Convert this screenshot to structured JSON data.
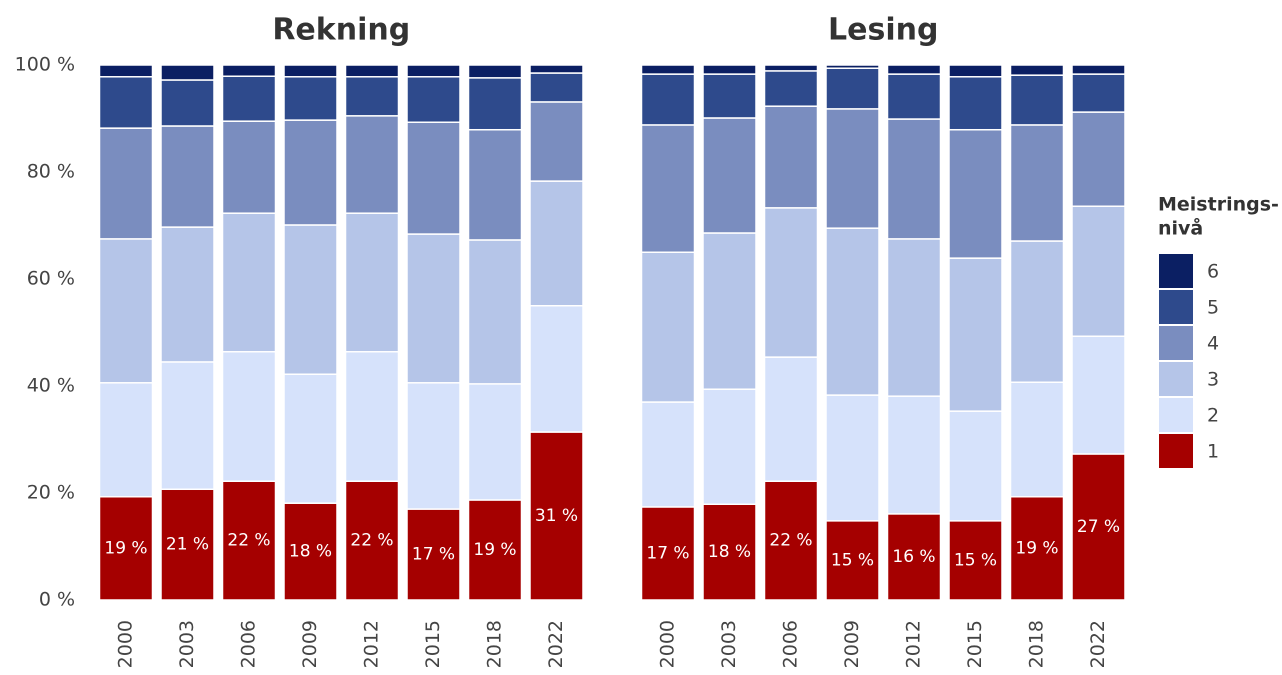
{
  "chart_data": [
    {
      "type": "bar",
      "stacked": true,
      "title": "Rekning",
      "categories": [
        "2000",
        "2003",
        "2006",
        "2009",
        "2012",
        "2015",
        "2018",
        "2022"
      ],
      "ylim": [
        0,
        100
      ],
      "yticks": [
        {
          "value": 0,
          "label": "0 %"
        },
        {
          "value": 20,
          "label": "20 %"
        },
        {
          "value": 40,
          "label": "40 %"
        },
        {
          "value": 60,
          "label": "60 %"
        },
        {
          "value": 80,
          "label": "80 %"
        },
        {
          "value": 100,
          "label": "100 %"
        }
      ],
      "legend_title": [
        "Meistrings-",
        "nivå"
      ],
      "series": [
        {
          "name": "1",
          "color": "#a50000",
          "values": [
            19.3,
            20.7,
            22.2,
            18.1,
            22.2,
            17.0,
            18.7,
            31.4
          ],
          "value_labels": [
            "19 %",
            "21 %",
            "22 %",
            "18 %",
            "22 %",
            "17 %",
            "19 %",
            "31 %"
          ]
        },
        {
          "name": "2",
          "color": "#d6e2fb",
          "values": [
            21.3,
            23.8,
            24.2,
            24.1,
            24.2,
            23.6,
            21.7,
            23.6
          ]
        },
        {
          "name": "3",
          "color": "#b5c5e8",
          "values": [
            26.9,
            25.2,
            25.9,
            27.9,
            25.9,
            27.8,
            26.9,
            23.3
          ]
        },
        {
          "name": "4",
          "color": "#7a8dbf",
          "values": [
            20.7,
            18.9,
            17.2,
            19.6,
            18.2,
            20.9,
            20.6,
            14.8
          ]
        },
        {
          "name": "5",
          "color": "#2e4a8c",
          "values": [
            9.6,
            8.6,
            8.4,
            8.1,
            7.3,
            8.5,
            9.7,
            5.4
          ]
        },
        {
          "name": "6",
          "color": "#0b1f63",
          "values": [
            2.2,
            2.8,
            2.1,
            2.2,
            2.2,
            2.2,
            2.4,
            1.5
          ]
        }
      ]
    },
    {
      "type": "bar",
      "stacked": true,
      "title": "Lesing",
      "categories": [
        "2000",
        "2003",
        "2006",
        "2009",
        "2012",
        "2015",
        "2018",
        "2022"
      ],
      "ylim": [
        0,
        100
      ],
      "series": [
        {
          "name": "1",
          "color": "#a50000",
          "values": [
            17.4,
            17.9,
            22.2,
            14.8,
            16.1,
            14.8,
            19.3,
            27.3
          ],
          "value_labels": [
            "17 %",
            "18 %",
            "22 %",
            "15 %",
            "16 %",
            "15 %",
            "19 %",
            "27 %"
          ]
        },
        {
          "name": "2",
          "color": "#d6e2fb",
          "values": [
            19.6,
            21.5,
            23.2,
            23.5,
            22.0,
            20.5,
            21.4,
            22.0
          ]
        },
        {
          "name": "3",
          "color": "#b5c5e8",
          "values": [
            28.0,
            29.2,
            27.9,
            31.2,
            29.4,
            28.6,
            26.4,
            24.3
          ]
        },
        {
          "name": "4",
          "color": "#7a8dbf",
          "values": [
            23.8,
            21.5,
            19.0,
            22.3,
            22.4,
            24.0,
            21.7,
            17.6
          ]
        },
        {
          "name": "5",
          "color": "#2e4a8c",
          "values": [
            9.5,
            8.2,
            6.6,
            7.6,
            8.4,
            9.9,
            9.3,
            7.1
          ]
        },
        {
          "name": "6",
          "color": "#0b1f63",
          "values": [
            1.7,
            1.7,
            1.1,
            0.6,
            1.7,
            2.2,
            1.9,
            1.7
          ]
        }
      ]
    }
  ]
}
